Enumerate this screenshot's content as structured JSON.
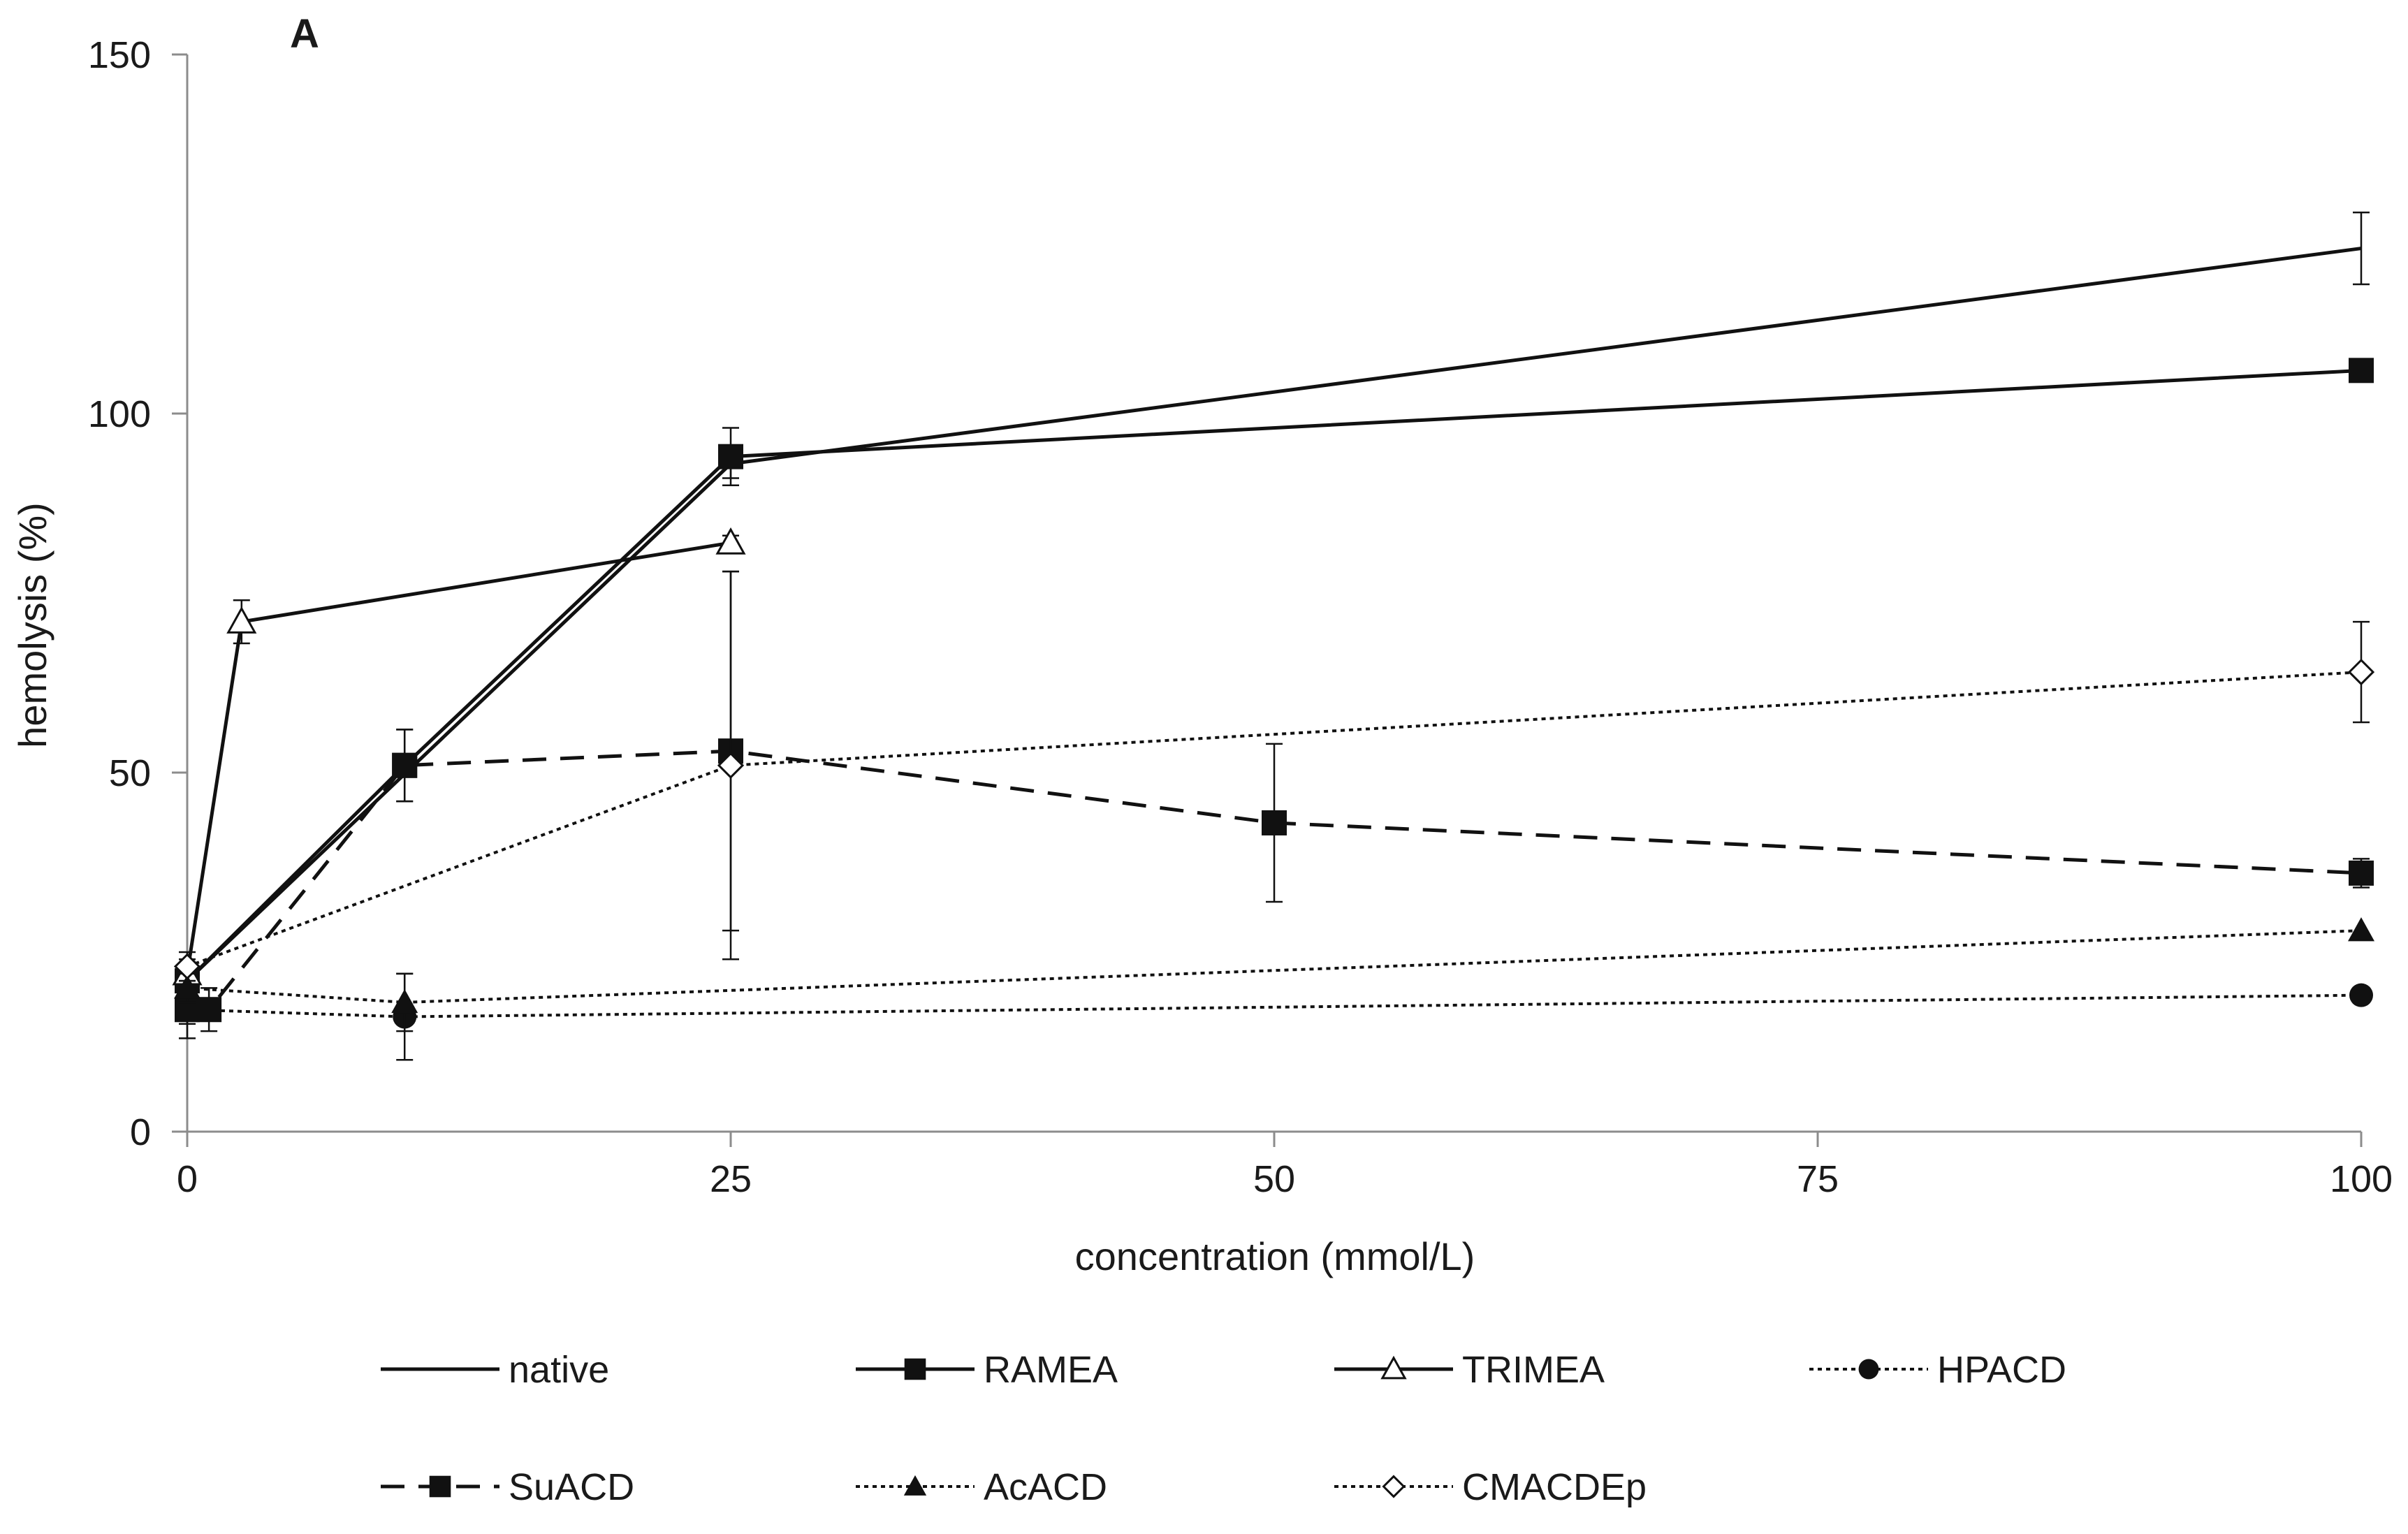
{
  "chart_data": {
    "type": "line",
    "panel_label": "A",
    "title": "",
    "xlabel": "concentration (mmol/L)",
    "ylabel": "hemolysis (%)",
    "xlim": [
      0,
      100
    ],
    "ylim": [
      0,
      150
    ],
    "xticks": [
      0,
      25,
      50,
      75,
      100
    ],
    "yticks": [
      0,
      50,
      100,
      150
    ],
    "grid": false,
    "legend_position": "bottom",
    "series": [
      {
        "name": "native",
        "line": "solid",
        "marker": "none",
        "x": [
          0,
          25,
          100
        ],
        "y": [
          21,
          93,
          123
        ],
        "err": [
          2,
          2,
          5
        ]
      },
      {
        "name": "RAMEA",
        "line": "solid",
        "marker": "filled-square",
        "x": [
          0,
          10,
          25,
          100
        ],
        "y": [
          21,
          51,
          94,
          106
        ],
        "err": [
          2,
          5,
          4,
          0
        ]
      },
      {
        "name": "TRIMEA",
        "line": "solid",
        "marker": "open-triangle",
        "x": [
          0,
          2.5,
          25
        ],
        "y": [
          22,
          71,
          82
        ],
        "err": [
          2,
          3,
          1
        ]
      },
      {
        "name": "HPACD",
        "line": "dotted",
        "marker": "filled-circle",
        "x": [
          0,
          10,
          100
        ],
        "y": [
          17,
          16,
          19
        ],
        "err": [
          2,
          6,
          0
        ]
      },
      {
        "name": "SuACD",
        "line": "dashed",
        "marker": "filled-square",
        "x": [
          0,
          1,
          10,
          25,
          50,
          100
        ],
        "y": [
          17,
          17,
          51,
          53,
          43,
          36
        ],
        "err": [
          4,
          3,
          5,
          25,
          11,
          2
        ]
      },
      {
        "name": "AcACD",
        "line": "dotted",
        "marker": "filled-triangle",
        "x": [
          0,
          10,
          100
        ],
        "y": [
          20,
          18,
          28
        ],
        "err": [
          2,
          4,
          0
        ]
      },
      {
        "name": "CMACDEp",
        "line": "dotted",
        "marker": "open-diamond",
        "x": [
          0,
          25,
          100
        ],
        "y": [
          23,
          51,
          64
        ],
        "err": [
          2,
          27,
          7
        ]
      }
    ]
  }
}
